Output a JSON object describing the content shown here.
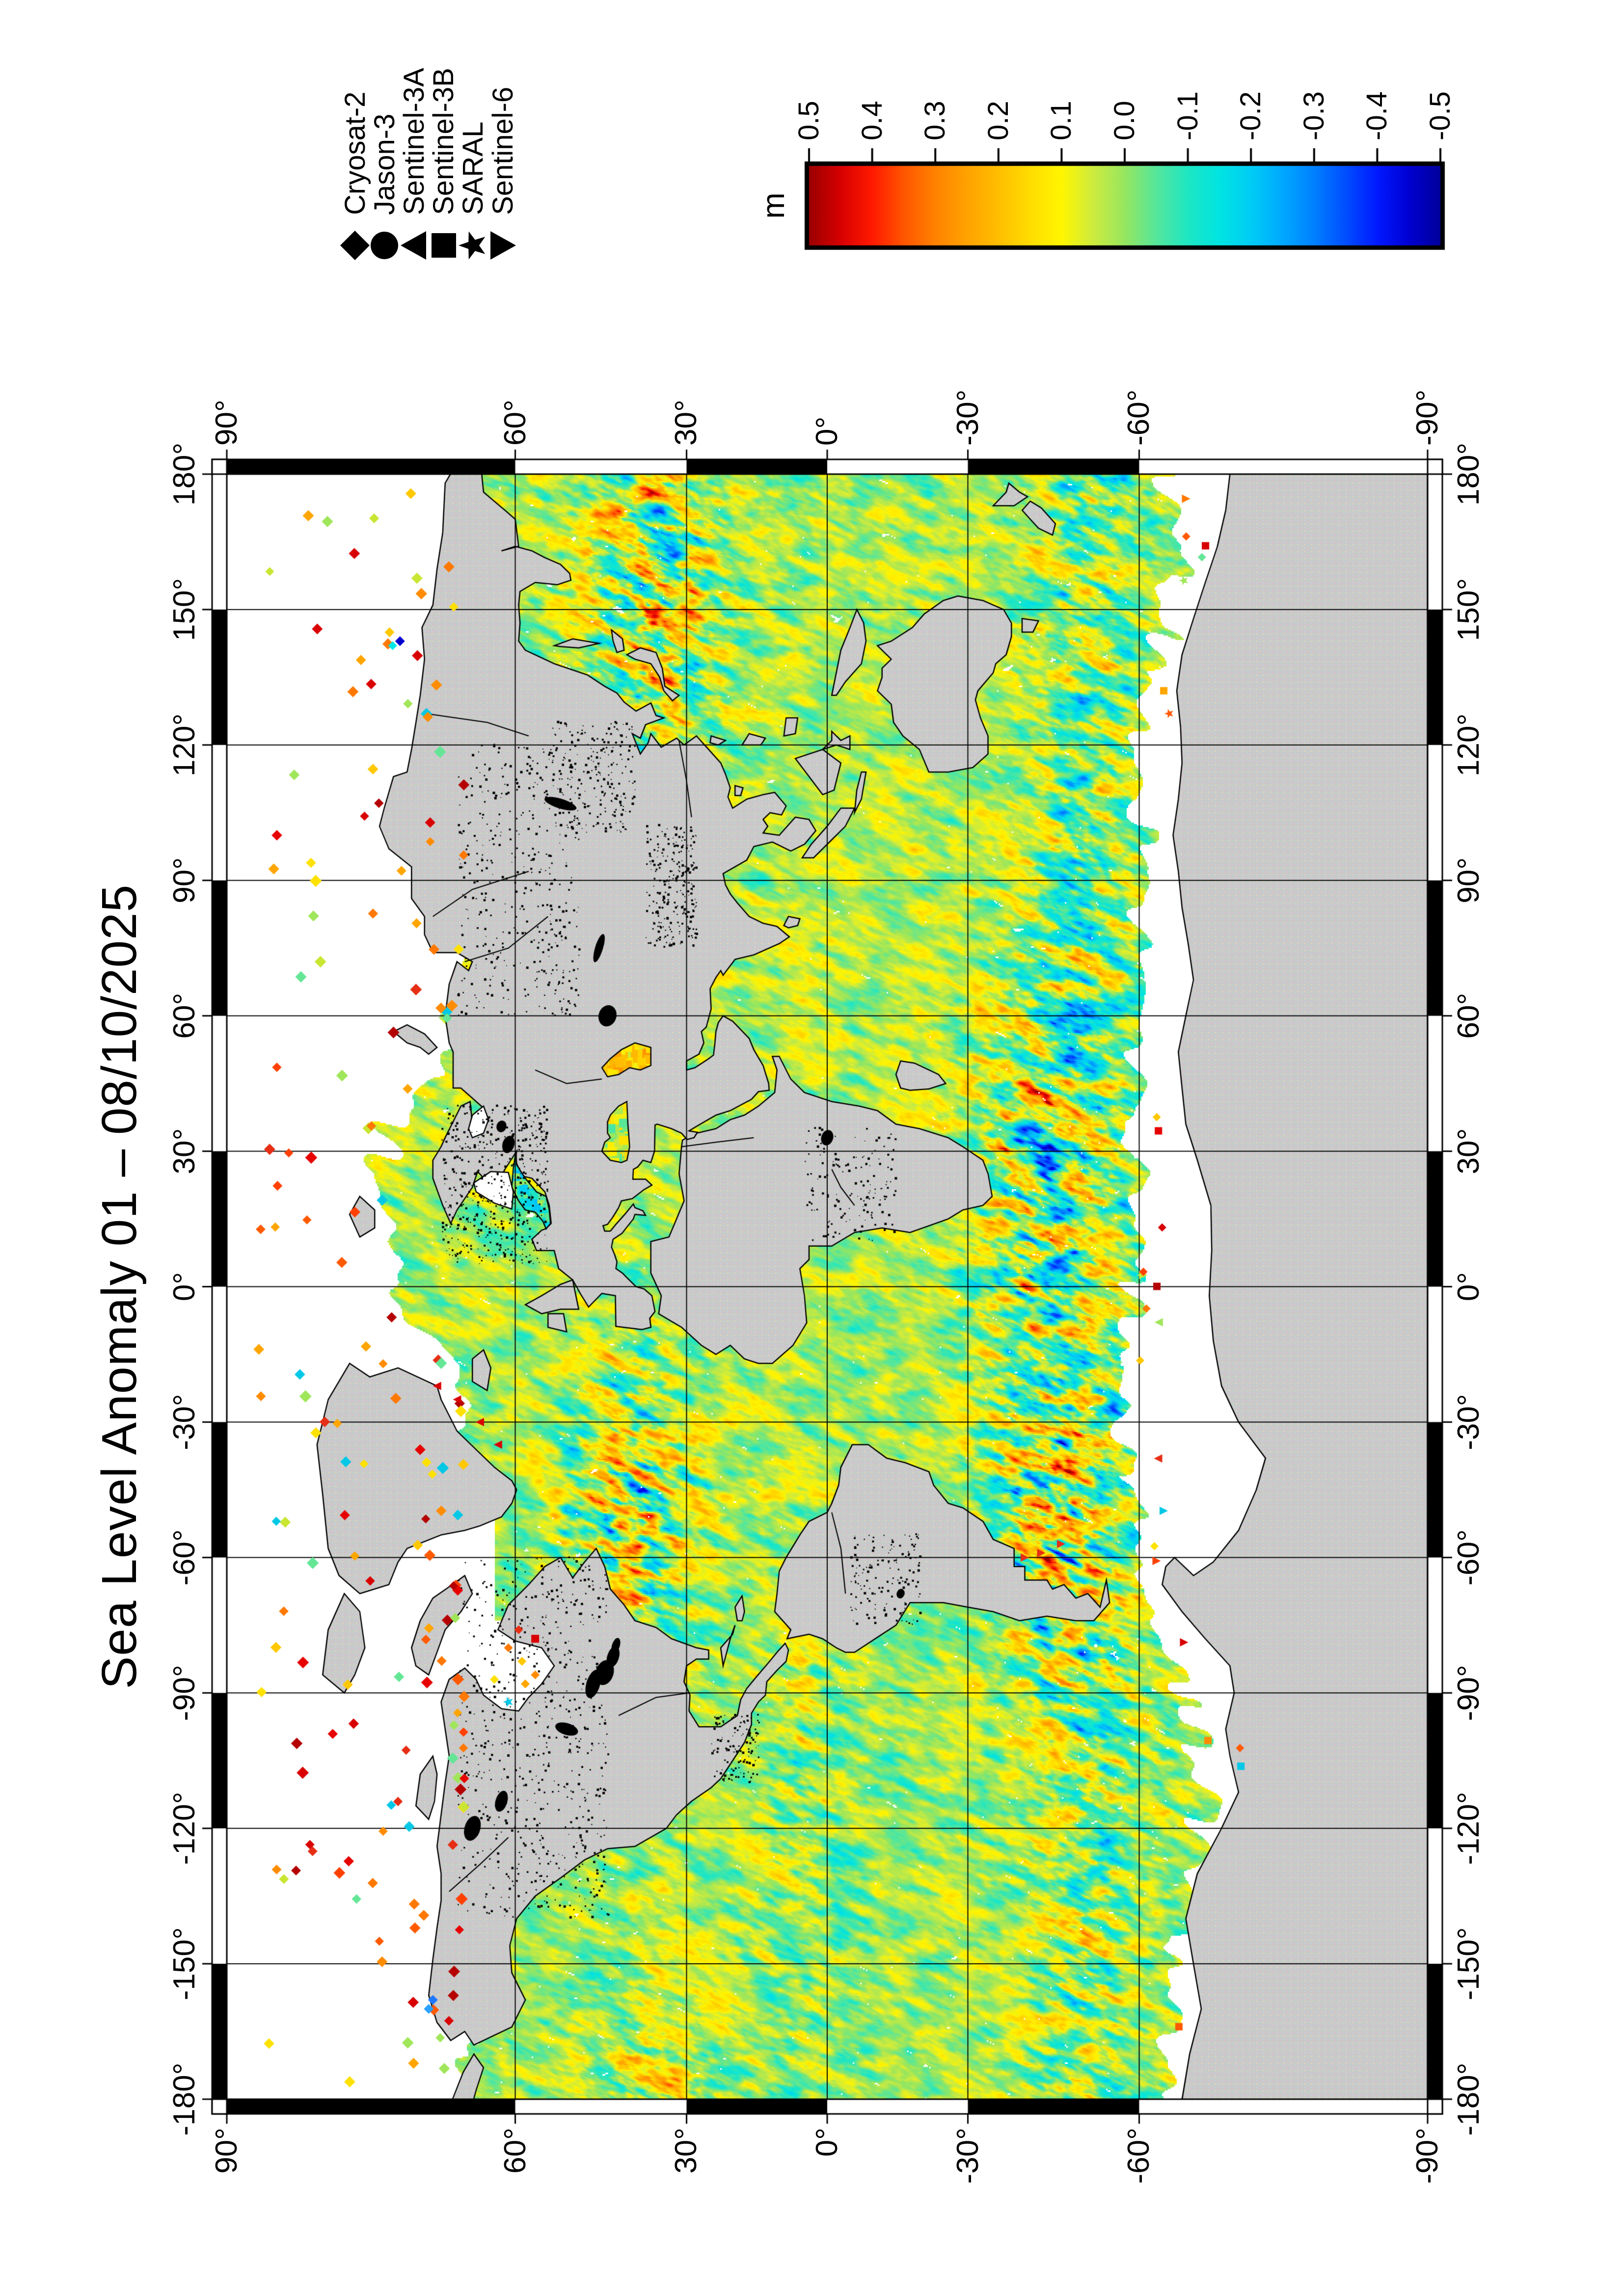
{
  "title": "Sea Level Anomaly 01 – 08/10/2025",
  "colorbar": {
    "unit": "m",
    "min": -0.5,
    "max": 0.5,
    "tick_labels": [
      "0.5",
      "0.4",
      "0.3",
      "0.2",
      "0.1",
      "0.0",
      "-0.1",
      "-0.2",
      "-0.3",
      "-0.4",
      "-0.5"
    ],
    "tick_values": [
      0.5,
      0.4,
      0.3,
      0.2,
      0.1,
      0.0,
      -0.1,
      -0.2,
      -0.3,
      -0.4,
      -0.5
    ]
  },
  "legend": {
    "entries": [
      {
        "label": "Cryosat-2",
        "symbol": "diamond"
      },
      {
        "label": "Jason-3",
        "symbol": "circle"
      },
      {
        "label": "Sentinel-3A",
        "symbol": "triangle-up"
      },
      {
        "label": "Sentinel-3B",
        "symbol": "square"
      },
      {
        "label": "SARAL",
        "symbol": "star"
      },
      {
        "label": "Sentinel-6",
        "symbol": "triangle-down"
      }
    ]
  },
  "axes": {
    "lon_tick_labels": [
      "-180°",
      "-150°",
      "-120°",
      "-90°",
      "-60°",
      "-30°",
      "0°",
      "30°",
      "60°",
      "90°",
      "120°",
      "150°",
      "180°"
    ],
    "lon_tick_values": [
      -180,
      -150,
      -120,
      -90,
      -60,
      -30,
      0,
      30,
      60,
      90,
      120,
      150,
      180
    ],
    "lat_tick_labels": [
      "90°",
      "60°",
      "30°",
      "0°",
      "-30°",
      "-60°",
      "-90°"
    ],
    "lat_tick_values": [
      90,
      60,
      30,
      0,
      -30,
      -60,
      -90
    ],
    "grid_interval_deg": 30
  },
  "chart_data": {
    "type": "heatmap",
    "title": "Sea Level Anomaly 01 – 08/10/2025",
    "variable": "Sea Level Anomaly",
    "date_range": "01 – 08/10/2025",
    "units": "m",
    "projection": "miller",
    "lon_range": [
      -180,
      180
    ],
    "lat_range": [
      -90,
      90
    ],
    "grid_interval_deg": 30,
    "colorbar_range": [
      -0.5,
      0.5
    ],
    "colorbar_ticks": [
      0.5,
      0.4,
      0.3,
      0.2,
      0.1,
      0.0,
      -0.1,
      -0.2,
      -0.3,
      -0.4,
      -0.5
    ],
    "colormap_stops": [
      [
        -0.5,
        "#00009b"
      ],
      [
        -0.45,
        "#0000d2"
      ],
      [
        -0.4,
        "#0019ff"
      ],
      [
        -0.35,
        "#004dff"
      ],
      [
        -0.3,
        "#0080ff"
      ],
      [
        -0.25,
        "#00a8ff"
      ],
      [
        -0.2,
        "#00ccf5"
      ],
      [
        -0.15,
        "#00e4e1"
      ],
      [
        -0.1,
        "#1ee6c3"
      ],
      [
        -0.05,
        "#55e69b"
      ],
      [
        0.0,
        "#96e65f"
      ],
      [
        0.05,
        "#cdeb3e"
      ],
      [
        0.1,
        "#fff500"
      ],
      [
        0.15,
        "#ffdc00"
      ],
      [
        0.2,
        "#ffbe00"
      ],
      [
        0.25,
        "#ffa200"
      ],
      [
        0.3,
        "#ff8200"
      ],
      [
        0.35,
        "#ff5500"
      ],
      [
        0.4,
        "#ff1900"
      ],
      [
        0.45,
        "#d70000"
      ],
      [
        0.5,
        "#9b0000"
      ]
    ],
    "missions": [
      "Cryosat-2",
      "Jason-3",
      "Sentinel-3A",
      "Sentinel-3B",
      "SARAL",
      "Sentinel-6"
    ],
    "land_color": "#c9c9c9",
    "coastline_color": "#000000",
    "frame_style": "alternating black/white 30-degree segments",
    "no_data_regions": [
      "Arctic Ocean poleward of ~66.5N shown as scattered along-track diamonds",
      "Antarctic sea-ice zone between data edge and coast",
      "Hudson Bay",
      "White Sea",
      "Gulf of Bothnia"
    ]
  }
}
